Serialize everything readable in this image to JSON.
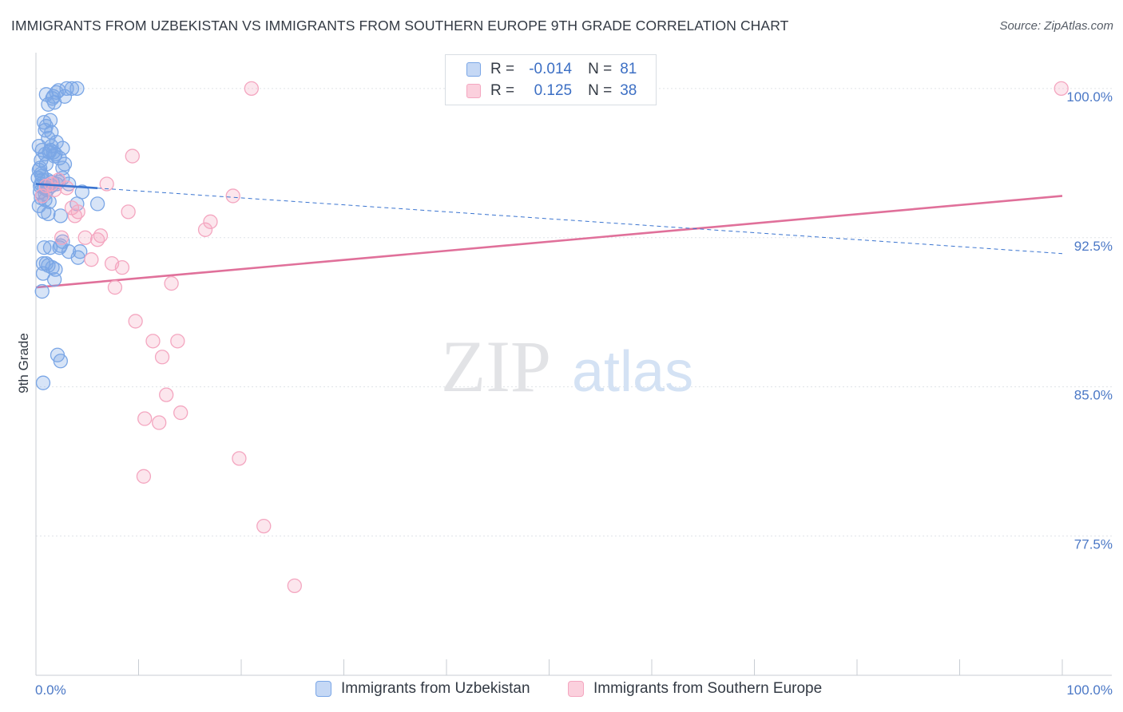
{
  "title": "IMMIGRANTS FROM UZBEKISTAN VS IMMIGRANTS FROM SOUTHERN EUROPE 9TH GRADE CORRELATION CHART",
  "source": "Source: ZipAtlas.com",
  "watermark": {
    "zip": "ZIP",
    "atlas": "atlas"
  },
  "legend": {
    "rows": [
      {
        "r_label": "R =",
        "r_value": "-0.014",
        "n_label": "N =",
        "n_value": "81"
      },
      {
        "r_label": "R =",
        "r_value": "0.125",
        "n_label": "N =",
        "n_value": "38"
      }
    ]
  },
  "chart_data": {
    "type": "scatter",
    "title": "IMMIGRANTS FROM UZBEKISTAN VS IMMIGRANTS FROM SOUTHERN EUROPE 9TH GRADE CORRELATION CHART",
    "xlabel": "",
    "ylabel": "9th Grade",
    "xlim": [
      0,
      100
    ],
    "ylim": [
      70.5,
      101.8
    ],
    "x_tick_labels": [
      "0.0%",
      "100.0%"
    ],
    "y_ticks": [
      100.0,
      92.5,
      85.0,
      77.5
    ],
    "y_tick_labels": [
      "100.0%",
      "92.5%",
      "85.0%",
      "77.5%"
    ],
    "colors": {
      "series1": "#7aa6e6",
      "series2": "#f4a6c0",
      "line1": "#3a74d0",
      "line2": "#e0709a",
      "tick": "#4b78c6"
    },
    "series": [
      {
        "name": "Immigrants from Uzbekistan",
        "r": -0.014,
        "n": 81,
        "trend": {
          "x": [
            0,
            100
          ],
          "y": [
            95.2,
            91.7
          ],
          "solid_until": 6
        },
        "points": [
          [
            1.0,
            99.7
          ],
          [
            1.6,
            99.5
          ],
          [
            1.2,
            99.2
          ],
          [
            3.0,
            100.0
          ],
          [
            3.5,
            100.0
          ],
          [
            4.0,
            100.0
          ],
          [
            2.0,
            99.8
          ],
          [
            2.8,
            99.6
          ],
          [
            1.8,
            99.3
          ],
          [
            0.8,
            98.3
          ],
          [
            1.4,
            98.4
          ],
          [
            0.9,
            97.9
          ],
          [
            1.5,
            97.8
          ],
          [
            1.2,
            97.5
          ],
          [
            2.0,
            97.3
          ],
          [
            2.6,
            97.0
          ],
          [
            0.6,
            96.9
          ],
          [
            0.9,
            96.7
          ],
          [
            1.3,
            96.8
          ],
          [
            1.7,
            96.8
          ],
          [
            1.8,
            96.6
          ],
          [
            2.3,
            96.5
          ],
          [
            0.5,
            96.4
          ],
          [
            1.0,
            96.2
          ],
          [
            2.8,
            96.2
          ],
          [
            2.6,
            96.0
          ],
          [
            0.3,
            95.9
          ],
          [
            0.5,
            95.7
          ],
          [
            0.2,
            95.5
          ],
          [
            0.6,
            95.4
          ],
          [
            1.1,
            95.4
          ],
          [
            1.6,
            95.3
          ],
          [
            2.2,
            95.3
          ],
          [
            0.4,
            95.1
          ],
          [
            0.8,
            95.0
          ],
          [
            1.5,
            95.1
          ],
          [
            3.2,
            95.2
          ],
          [
            0.4,
            94.8
          ],
          [
            1.1,
            94.9
          ],
          [
            4.5,
            94.8
          ],
          [
            0.5,
            94.5
          ],
          [
            0.9,
            94.4
          ],
          [
            4.0,
            94.2
          ],
          [
            6.0,
            94.2
          ],
          [
            0.3,
            94.1
          ],
          [
            0.8,
            93.8
          ],
          [
            1.2,
            93.7
          ],
          [
            2.4,
            93.6
          ],
          [
            0.8,
            92.0
          ],
          [
            1.4,
            92.0
          ],
          [
            2.3,
            92.0
          ],
          [
            2.6,
            92.3
          ],
          [
            3.2,
            91.8
          ],
          [
            4.3,
            91.8
          ],
          [
            4.1,
            91.5
          ],
          [
            1.0,
            91.2
          ],
          [
            0.7,
            91.2
          ],
          [
            1.2,
            91.1
          ],
          [
            1.6,
            91.0
          ],
          [
            1.9,
            90.9
          ],
          [
            0.7,
            90.7
          ],
          [
            1.8,
            90.4
          ],
          [
            0.6,
            89.8
          ],
          [
            2.1,
            86.6
          ],
          [
            2.4,
            86.3
          ],
          [
            0.7,
            85.2
          ],
          [
            0.3,
            97.1
          ],
          [
            0.4,
            96.0
          ],
          [
            0.6,
            95.6
          ],
          [
            1.4,
            96.9
          ],
          [
            2.0,
            95.2
          ],
          [
            2.6,
            95.5
          ],
          [
            1.7,
            99.6
          ],
          [
            2.2,
            99.9
          ],
          [
            1.0,
            98.1
          ],
          [
            1.5,
            97.1
          ],
          [
            0.5,
            95.2
          ],
          [
            1.3,
            94.3
          ],
          [
            2.4,
            92.1
          ],
          [
            0.9,
            94.7
          ],
          [
            1.9,
            96.7
          ]
        ]
      },
      {
        "name": "Immigrants from Southern Europe",
        "r": 0.125,
        "n": 38,
        "trend": {
          "x": [
            0,
            100
          ],
          "y": [
            90.0,
            94.6
          ]
        },
        "points": [
          [
            21.0,
            100.0
          ],
          [
            99.9,
            100.0
          ],
          [
            9.4,
            96.6
          ],
          [
            6.9,
            95.2
          ],
          [
            1.0,
            95.1
          ],
          [
            1.8,
            94.9
          ],
          [
            19.2,
            94.6
          ],
          [
            3.5,
            94.0
          ],
          [
            4.1,
            93.8
          ],
          [
            9.0,
            93.8
          ],
          [
            3.8,
            93.6
          ],
          [
            17.0,
            93.3
          ],
          [
            16.5,
            92.9
          ],
          [
            2.5,
            92.5
          ],
          [
            4.8,
            92.5
          ],
          [
            6.3,
            92.6
          ],
          [
            6.0,
            92.4
          ],
          [
            5.4,
            91.4
          ],
          [
            7.4,
            91.2
          ],
          [
            8.4,
            91.0
          ],
          [
            13.2,
            90.2
          ],
          [
            7.7,
            90.0
          ],
          [
            9.7,
            88.3
          ],
          [
            11.4,
            87.3
          ],
          [
            13.8,
            87.3
          ],
          [
            12.3,
            86.5
          ],
          [
            12.7,
            84.6
          ],
          [
            10.6,
            83.4
          ],
          [
            12.0,
            83.2
          ],
          [
            14.1,
            83.7
          ],
          [
            19.8,
            81.4
          ],
          [
            10.5,
            80.5
          ],
          [
            22.2,
            78.0
          ],
          [
            25.2,
            75.0
          ],
          [
            1.5,
            95.2
          ],
          [
            0.6,
            94.6
          ],
          [
            2.2,
            95.4
          ],
          [
            3.0,
            95.0
          ]
        ]
      }
    ]
  }
}
